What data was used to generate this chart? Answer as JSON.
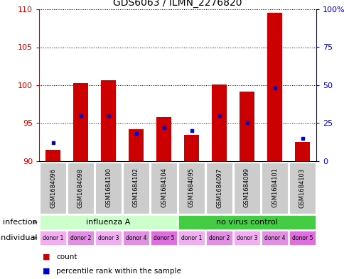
{
  "title": "GDS6063 / ILMN_2276820",
  "samples": [
    "GSM1684096",
    "GSM1684098",
    "GSM1684100",
    "GSM1684102",
    "GSM1684104",
    "GSM1684095",
    "GSM1684097",
    "GSM1684099",
    "GSM1684101",
    "GSM1684103"
  ],
  "counts": [
    91.5,
    100.3,
    100.7,
    94.2,
    95.8,
    93.5,
    100.1,
    99.2,
    109.5,
    92.5
  ],
  "percentiles": [
    12,
    30,
    30,
    18,
    22,
    20,
    30,
    25,
    48,
    15
  ],
  "ymin": 90,
  "ymax": 110,
  "yticks": [
    90,
    95,
    100,
    105,
    110
  ],
  "right_yticks": [
    0,
    25,
    50,
    75,
    100
  ],
  "right_ylabels": [
    "0",
    "25",
    "50",
    "75",
    "100%"
  ],
  "infection_groups": [
    {
      "label": "influenza A",
      "start": 0,
      "end": 4,
      "color": "#ccffcc"
    },
    {
      "label": "no virus control",
      "start": 5,
      "end": 9,
      "color": "#44cc44"
    }
  ],
  "donors": [
    "donor 1",
    "donor 2",
    "donor 3",
    "donor 4",
    "donor 5",
    "donor 1",
    "donor 2",
    "donor 3",
    "donor 4",
    "donor 5"
  ],
  "donor_colors_alt": [
    "#f0b0f0",
    "#e090e0",
    "#f0b0f0",
    "#e090e0",
    "#dd70dd",
    "#f0b0f0",
    "#e090e0",
    "#f0b0f0",
    "#e090e0",
    "#dd70dd"
  ],
  "bar_color": "#cc0000",
  "blue_color": "#0000cc",
  "bar_width": 0.55,
  "left_axis_color": "#cc0000",
  "right_axis_color": "#0000cc",
  "sample_bg": "#cccccc",
  "arrow_color": "#888888",
  "legend1": "count",
  "legend2": "percentile rank within the sample"
}
